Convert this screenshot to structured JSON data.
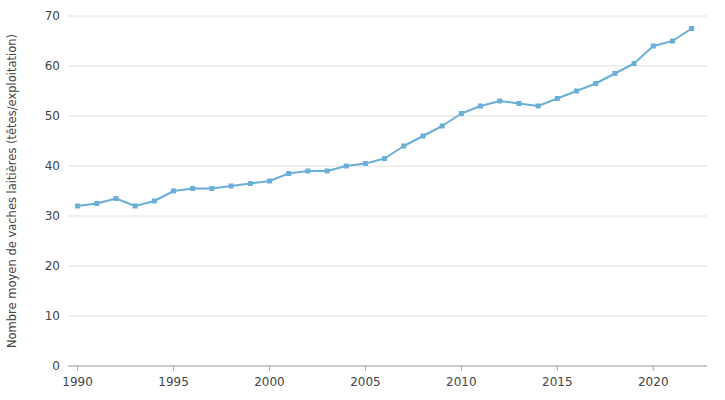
{
  "chart_data": {
    "type": "line",
    "ylabel": "Nombre moyen de vaches laitières (têtes/exploitation)",
    "x": [
      1990,
      1991,
      1992,
      1993,
      1994,
      1995,
      1996,
      1997,
      1998,
      1999,
      2000,
      2001,
      2002,
      2003,
      2004,
      2005,
      2006,
      2007,
      2008,
      2009,
      2010,
      2011,
      2012,
      2013,
      2014,
      2015,
      2016,
      2017,
      2018,
      2019,
      2020,
      2021,
      2022
    ],
    "values": [
      32,
      32.5,
      33.5,
      32,
      33,
      35,
      35.5,
      35.5,
      36,
      36.5,
      37,
      38.5,
      39,
      39,
      40,
      40.5,
      41.5,
      44,
      46,
      48,
      50.5,
      52,
      53,
      52.5,
      52,
      53.5,
      55,
      56.5,
      58.5,
      60.5,
      64,
      65,
      67.5
    ],
    "color": "#6baed6",
    "marker": "square",
    "xlim": [
      1989.5,
      2022.8
    ],
    "xticks": [
      1990,
      1995,
      2000,
      2005,
      2010,
      2015,
      2020
    ],
    "ylim": [
      0,
      70
    ],
    "yticks": [
      0,
      10,
      20,
      30,
      40,
      50,
      60,
      70
    ],
    "grid": true
  }
}
